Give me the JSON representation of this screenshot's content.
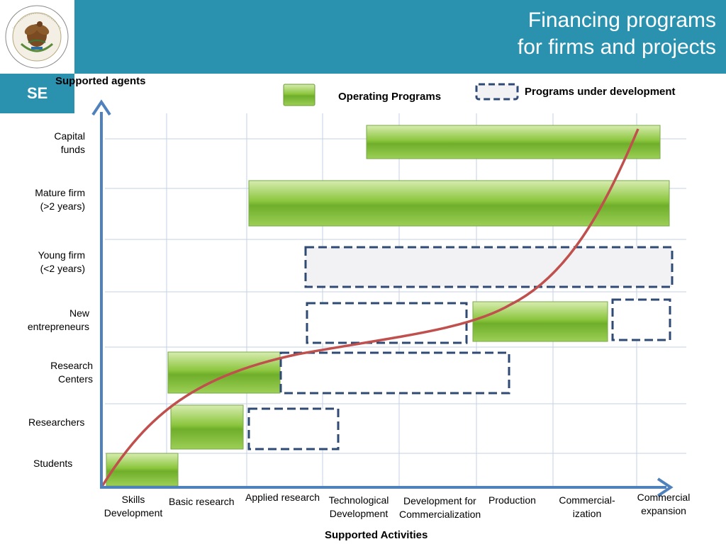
{
  "header": {
    "title_line1": "Financing programs",
    "title_line2": "for firms and projects",
    "se_label": "SE",
    "seal_text": "ESTADOS UNIDOS MEXICANOS",
    "background_color": "#2a92ae"
  },
  "legend": {
    "supported_agents": "Supported agents",
    "operating_programs": "Operating Programs",
    "programs_under_development": "Programs under development"
  },
  "colors": {
    "operating": "#8cc63e",
    "development_border": "#2e4a75",
    "development_fill": "#f2f2f5",
    "curve": "#c0504d",
    "axis": "#4f81bd",
    "grid": "#c6d2e6"
  },
  "y_axis": {
    "labels": [
      {
        "line1": "Capital",
        "line2": "funds"
      },
      {
        "line1": "Mature firm",
        "line2": "(>2 years)"
      },
      {
        "line1": "Young firm",
        "line2": "(<2 years)"
      },
      {
        "line1": "New",
        "line2": "entrepreneurs"
      },
      {
        "line1": "Research",
        "line2": "Centers"
      },
      {
        "line1": "Researchers",
        "line2": ""
      },
      {
        "line1": "Students",
        "line2": ""
      }
    ]
  },
  "x_axis": {
    "title": "Supported Activities",
    "labels": [
      {
        "line1": "Skills",
        "line2": "Development"
      },
      {
        "line1": "Basic research",
        "line2": ""
      },
      {
        "line1": "Applied research",
        "line2": ""
      },
      {
        "line1": "Technological",
        "line2": "Development"
      },
      {
        "line1": "Development for",
        "line2": "Commercialization"
      },
      {
        "line1": "Production",
        "line2": ""
      },
      {
        "line1": "Commercial-",
        "line2": "ization"
      },
      {
        "line1": "Commercial",
        "line2": "expansion"
      }
    ]
  },
  "programs": [
    {
      "agent": "Capital funds",
      "status": "operating",
      "from_stage": 4.3,
      "to_stage": 8.0
    },
    {
      "agent": "Mature firm (>2 years)",
      "status": "operating",
      "from_stage": 2.0,
      "to_stage": 8.0
    },
    {
      "agent": "Young firm (<2 years)",
      "status": "under development",
      "from_stage": 2.8,
      "to_stage": 8.0
    },
    {
      "agent": "New entrepreneurs",
      "status": "under development",
      "from_stage": 2.8,
      "to_stage": 4.9
    },
    {
      "agent": "New entrepreneurs",
      "status": "operating",
      "from_stage": 4.9,
      "to_stage": 6.8
    },
    {
      "agent": "New entrepreneurs",
      "status": "under development",
      "from_stage": 6.9,
      "to_stage": 7.6
    },
    {
      "agent": "Research Centers",
      "status": "operating",
      "from_stage": 0.9,
      "to_stage": 2.4
    },
    {
      "agent": "Research Centers",
      "status": "under development",
      "from_stage": 2.4,
      "to_stage": 5.3
    },
    {
      "agent": "Researchers",
      "status": "operating",
      "from_stage": 0.9,
      "to_stage": 1.9
    },
    {
      "agent": "Researchers",
      "status": "under development",
      "from_stage": 2.0,
      "to_stage": 3.2
    },
    {
      "agent": "Students",
      "status": "operating",
      "from_stage": 0.0,
      "to_stage": 1.0
    }
  ]
}
